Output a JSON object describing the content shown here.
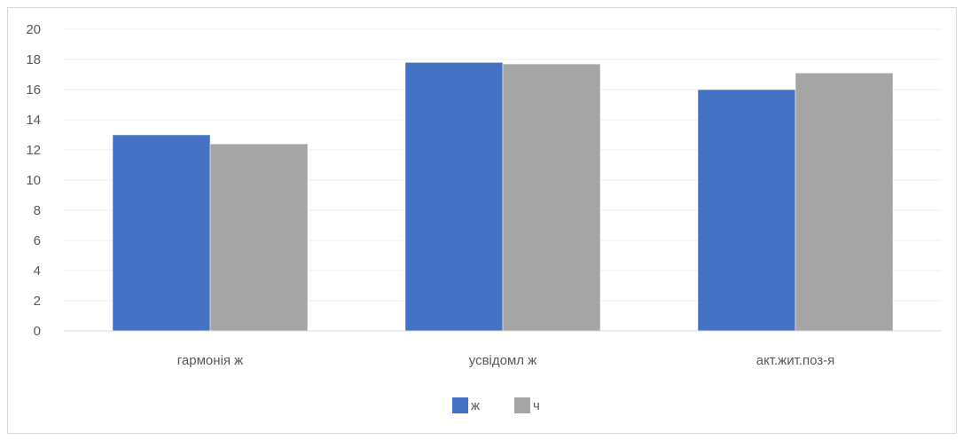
{
  "chart_data": {
    "type": "bar",
    "categories": [
      "гармонія ж",
      "усвідомл ж",
      "акт.жит.поз-я"
    ],
    "series": [
      {
        "name": "ж",
        "values": [
          13.0,
          17.8,
          16.0
        ],
        "color": "#4472c4"
      },
      {
        "name": "ч",
        "values": [
          12.4,
          17.7,
          17.1
        ],
        "color": "#a5a5a5"
      }
    ],
    "ylim": [
      0,
      20
    ],
    "yticks": [
      0,
      2,
      4,
      6,
      8,
      10,
      12,
      14,
      16,
      18,
      20
    ],
    "grid": true,
    "legend_position": "bottom"
  }
}
